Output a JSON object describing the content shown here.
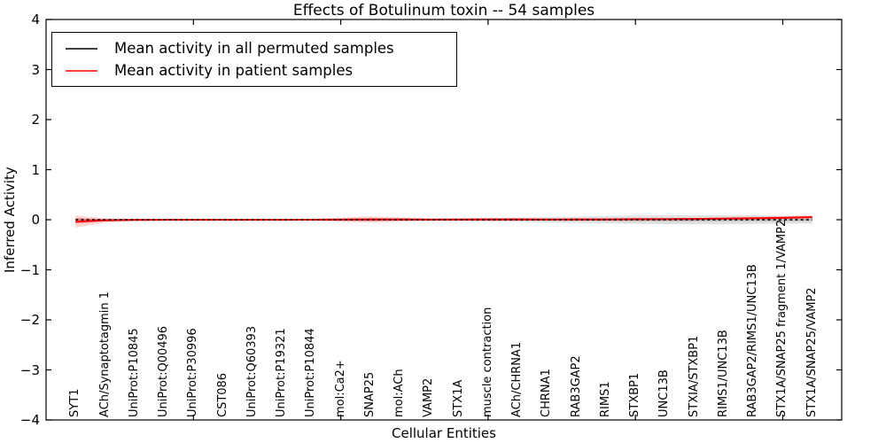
{
  "figure": {
    "background": "#ffffff"
  },
  "chart_data": {
    "type": "line",
    "title": "Effects of Botulinum toxin -- 54 samples",
    "xlabel": "Cellular Entities",
    "ylabel": "Inferred Activity",
    "ylim": [
      -4,
      4
    ],
    "xlim": [
      -1,
      26
    ],
    "yticks": [
      4,
      3,
      2,
      1,
      0,
      -1,
      -2,
      -3,
      -4
    ],
    "ytick_labels": [
      "4",
      "3",
      "2",
      "1",
      "0",
      "−1",
      "−2",
      "−3",
      "−4"
    ],
    "xtick_positions": [
      4,
      9,
      14,
      19,
      24
    ],
    "grid": false,
    "legend_position": "upper left",
    "categories": [
      "SYT1",
      "ACh/Synaptotagmin 1",
      "UniProt:P10845",
      "UniProt:Q00496",
      "UniProt:P30996",
      "CST086",
      "UniProt:Q60393",
      "UniProt:P19321",
      "UniProt:P10844",
      "mol:Ca2+",
      "SNAP25",
      "mol:ACh",
      "VAMP2",
      "STX1A",
      "muscle contraction",
      "ACh/CHRNA1",
      "CHRNA1",
      "RAB3GAP2",
      "RIMS1",
      "STXBP1",
      "UNC13B",
      "STXIA/STXBP1",
      "RIMS1/UNC13B",
      "RAB3GAP2/RIMS1/UNC13B",
      "STX1A/SNAP25 fragment 1/VAMP2",
      "STX1A/SNAP25/VAMP2"
    ],
    "series": [
      {
        "name": "Mean activity in all permuted samples",
        "color": "#000000",
        "style": "dashed",
        "values": [
          0,
          0,
          0,
          0,
          0,
          0,
          0,
          0,
          0,
          0,
          0,
          0,
          0,
          0,
          0,
          0,
          0,
          0,
          0,
          0,
          0,
          0,
          0,
          0,
          0,
          0
        ]
      },
      {
        "name": "Mean activity in patient samples",
        "color": "#ff0000",
        "style": "solid",
        "values": [
          -0.04,
          -0.012,
          -0.004,
          -0.002,
          -0.001,
          -0.001,
          -0.001,
          -0.001,
          0.0,
          0.002,
          0.005,
          0.005,
          0.002,
          0.004,
          0.005,
          0.005,
          0.004,
          0.005,
          0.006,
          0.01,
          0.011,
          0.015,
          0.021,
          0.028,
          0.036,
          0.051
        ]
      }
    ],
    "bands": [
      {
        "series": "permuted-outer",
        "color": "#aaaaaa",
        "opacity": 0.35,
        "hi": [
          0.018,
          0.014,
          0.012,
          0.01,
          0.01,
          0.01,
          0.01,
          0.01,
          0.01,
          0.012,
          0.014,
          0.016,
          0.018,
          0.022,
          0.03,
          0.04,
          0.052,
          0.062,
          0.072,
          0.082,
          0.088,
          0.09,
          0.09,
          0.086,
          0.08,
          0.072
        ],
        "lo": [
          -0.018,
          -0.014,
          -0.012,
          -0.01,
          -0.01,
          -0.01,
          -0.01,
          -0.01,
          -0.01,
          -0.012,
          -0.014,
          -0.016,
          -0.018,
          -0.022,
          -0.03,
          -0.04,
          -0.052,
          -0.062,
          -0.072,
          -0.082,
          -0.088,
          -0.09,
          -0.09,
          -0.086,
          -0.08,
          -0.072
        ]
      },
      {
        "series": "permuted-inner",
        "color": "#888888",
        "opacity": 0.35,
        "hi": [
          0.007,
          0.006,
          0.005,
          0.004,
          0.004,
          0.004,
          0.004,
          0.004,
          0.004,
          0.005,
          0.006,
          0.007,
          0.007,
          0.009,
          0.012,
          0.016,
          0.021,
          0.025,
          0.029,
          0.033,
          0.035,
          0.036,
          0.036,
          0.034,
          0.032,
          0.029
        ],
        "lo": [
          -0.007,
          -0.006,
          -0.005,
          -0.004,
          -0.004,
          -0.004,
          -0.004,
          -0.004,
          -0.004,
          -0.005,
          -0.006,
          -0.007,
          -0.007,
          -0.009,
          -0.012,
          -0.016,
          -0.021,
          -0.025,
          -0.029,
          -0.033,
          -0.035,
          -0.036,
          -0.036,
          -0.034,
          -0.032,
          -0.029
        ]
      },
      {
        "series": "patient-outer",
        "color": "#ff0000",
        "opacity": 0.16,
        "hi": [
          0.085,
          0.03,
          0.012,
          0.008,
          0.008,
          0.008,
          0.008,
          0.01,
          0.022,
          0.045,
          0.068,
          0.048,
          0.03,
          0.028,
          0.034,
          0.03,
          0.024,
          0.02,
          0.02,
          0.024,
          0.03,
          0.036,
          0.05,
          0.06,
          0.072,
          0.09
        ],
        "lo": [
          -0.16,
          -0.06,
          -0.02,
          -0.012,
          -0.01,
          -0.01,
          -0.01,
          -0.012,
          -0.022,
          -0.04,
          -0.058,
          -0.038,
          -0.026,
          -0.02,
          -0.024,
          -0.02,
          -0.016,
          -0.01,
          -0.008,
          -0.004,
          0.0,
          0.004,
          0.01,
          0.016,
          0.022,
          0.03
        ]
      },
      {
        "series": "patient-inner",
        "color": "#ff0000",
        "opacity": 0.25,
        "hi": [
          0.04,
          0.014,
          0.006,
          0.004,
          0.004,
          0.004,
          0.004,
          0.005,
          0.011,
          0.022,
          0.034,
          0.024,
          0.015,
          0.014,
          0.017,
          0.015,
          0.012,
          0.01,
          0.01,
          0.014,
          0.018,
          0.022,
          0.032,
          0.04,
          0.048,
          0.062
        ],
        "lo": [
          -0.08,
          -0.028,
          -0.01,
          -0.006,
          -0.005,
          -0.005,
          -0.005,
          -0.006,
          -0.011,
          -0.02,
          -0.029,
          -0.019,
          -0.013,
          -0.01,
          -0.012,
          -0.01,
          -0.008,
          -0.005,
          -0.004,
          0.0,
          0.004,
          0.008,
          0.016,
          0.022,
          0.03,
          0.042
        ]
      }
    ],
    "legend": [
      {
        "label": "Mean activity in all permuted samples",
        "color": "#000000"
      },
      {
        "label": "Mean activity in patient samples",
        "color": "#ff0000"
      }
    ]
  }
}
